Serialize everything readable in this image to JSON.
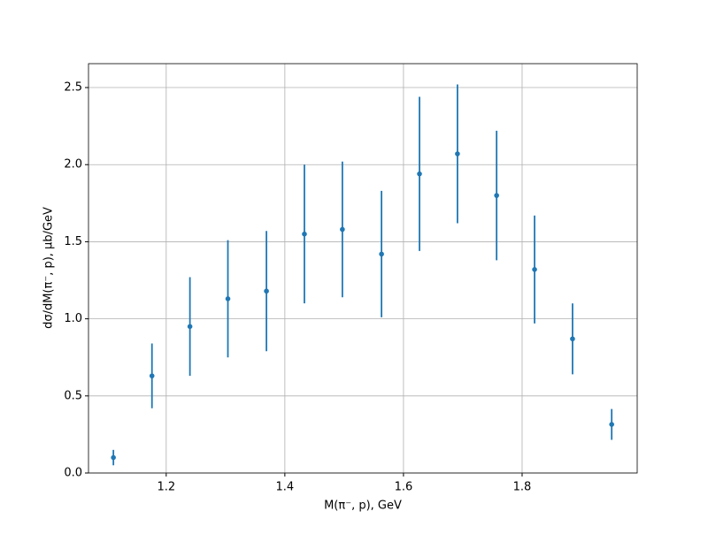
{
  "chart_data": {
    "type": "errorbar",
    "x_label": "M(π⁻, p), GeV",
    "y_label": "dσ/dM(π⁻, p), μb/GeV",
    "x": [
      1.111,
      1.176,
      1.24,
      1.304,
      1.369,
      1.433,
      1.497,
      1.563,
      1.627,
      1.691,
      1.757,
      1.821,
      1.885,
      1.951
    ],
    "values": [
      0.1,
      0.63,
      0.95,
      1.13,
      1.18,
      1.55,
      1.58,
      1.42,
      1.94,
      2.07,
      1.8,
      1.32,
      0.87,
      0.315
    ],
    "errors": [
      0.05,
      0.21,
      0.32,
      0.38,
      0.39,
      0.45,
      0.44,
      0.41,
      0.5,
      0.45,
      0.42,
      0.35,
      0.23,
      0.1
    ],
    "color": "#1f77b4",
    "xlim": [
      1.069,
      1.994
    ],
    "ylim": [
      0,
      2.655
    ],
    "xticks": [
      1.2,
      1.4,
      1.6,
      1.8
    ],
    "yticks": [
      {
        "value": 0,
        "label": "0.0"
      },
      0.5,
      {
        "value": 1,
        "label": "1.0"
      },
      1.5,
      {
        "value": 2,
        "label": "2.0"
      },
      2.5
    ],
    "grid": true
  }
}
